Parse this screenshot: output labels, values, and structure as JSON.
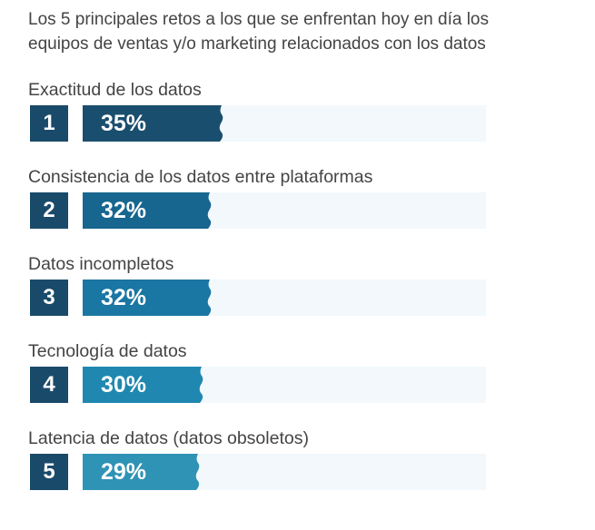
{
  "chart_data": {
    "type": "bar",
    "title": "Los 5 principales retos a los que se enfrentan hoy en día los equipos de ventas y/o marketing relacionados con los datos",
    "title_lines": [
      "Los 5 principales retos a los que se enfrentan hoy en día los",
      "equipos de ventas y/o marketing relacionados con los datos"
    ],
    "xlabel": "",
    "ylabel": "",
    "xlim": [
      0,
      100
    ],
    "items": [
      {
        "rank": "1",
        "label": "Exactitud de los datos",
        "value": 35,
        "value_label": "35%",
        "color": "#1a4e6e"
      },
      {
        "rank": "2",
        "label": "Consistencia de los datos entre plataformas",
        "value": 32,
        "value_label": "32%",
        "color": "#17668f"
      },
      {
        "rank": "3",
        "label": "Datos incompletos",
        "value": 32,
        "value_label": "32%",
        "color": "#1a76a3"
      },
      {
        "rank": "4",
        "label": "Tecnología de datos",
        "value": 30,
        "value_label": "30%",
        "color": "#2088b0"
      },
      {
        "rank": "5",
        "label": "Latencia de datos (datos obsoletos)",
        "value": 29,
        "value_label": "29%",
        "color": "#2f93b5"
      }
    ]
  }
}
